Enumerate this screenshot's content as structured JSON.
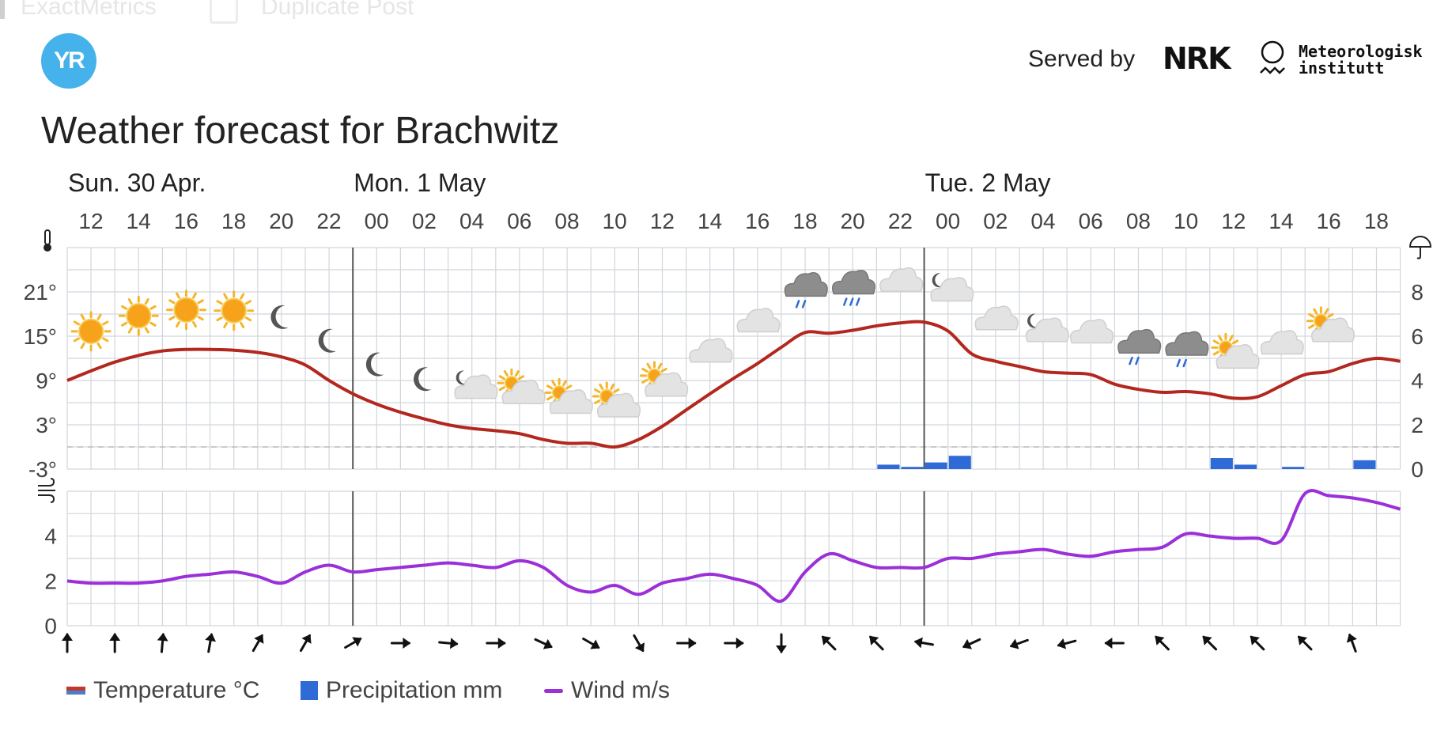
{
  "ghost_toolbar": {
    "item1": "ExactMetrics",
    "item2": "Duplicate Post"
  },
  "header": {
    "logo_text": "YR",
    "served_by": "Served by",
    "nrk_logo": "NRK",
    "met_line1": "Meteorologisk",
    "met_line2": "institutt"
  },
  "title": "Weather forecast for Brachwitz",
  "legend": {
    "temperature": "Temperature °C",
    "precipitation": "Precipitation mm",
    "wind": "Wind m/s"
  },
  "colors": {
    "temperature": "#b3281e",
    "precipitation": "#2f6bd6",
    "wind": "#9b30d9",
    "grid": "#d2d6dc",
    "day_divider": "#555555"
  },
  "chart_data": {
    "type": "line",
    "days": [
      {
        "label": "Sun. 30 Apr.",
        "start_hour_index": 0
      },
      {
        "label": "Mon. 1 May",
        "start_hour_index": 12
      },
      {
        "label": "Tue. 2 May",
        "start_hour_index": 36
      }
    ],
    "x_hours": [
      "12",
      "13",
      "14",
      "15",
      "16",
      "17",
      "18",
      "19",
      "20",
      "21",
      "22",
      "23",
      "00",
      "01",
      "02",
      "03",
      "04",
      "05",
      "06",
      "07",
      "08",
      "09",
      "10",
      "11",
      "12",
      "13",
      "14",
      "15",
      "16",
      "17",
      "18",
      "19",
      "20",
      "21",
      "22",
      "23",
      "00",
      "01",
      "02",
      "03",
      "04",
      "05",
      "06",
      "07",
      "08",
      "09",
      "10",
      "11",
      "12",
      "13",
      "14",
      "15",
      "16",
      "17",
      "18",
      "19",
      "20"
    ],
    "x_tick_labels": [
      "12",
      "14",
      "16",
      "18",
      "20",
      "22",
      "00",
      "02",
      "04",
      "06",
      "08",
      "10",
      "12",
      "14",
      "16",
      "18",
      "20",
      "22",
      "00",
      "02",
      "04",
      "06",
      "08",
      "10",
      "12",
      "14",
      "16",
      "18"
    ],
    "temperature_axis": {
      "ticks": [
        "-3°",
        "3°",
        "9°",
        "15°",
        "21°"
      ],
      "range": [
        -3,
        27
      ]
    },
    "precipitation_axis": {
      "ticks": [
        "0",
        "2",
        "4",
        "6",
        "8"
      ],
      "range": [
        0,
        10
      ]
    },
    "wind_axis": {
      "ticks": [
        "0",
        "2",
        "4"
      ],
      "range": [
        0,
        6
      ]
    },
    "series": [
      {
        "name": "Temperature °C",
        "unit": "°C",
        "values": [
          9.0,
          10.3,
          11.5,
          12.4,
          13.0,
          13.2,
          13.2,
          13.1,
          12.8,
          12.2,
          11.1,
          9.0,
          7.2,
          5.8,
          4.7,
          3.8,
          3.0,
          2.5,
          2.2,
          1.8,
          1.0,
          0.5,
          0.5,
          0.0,
          1.0,
          2.8,
          5.0,
          7.2,
          9.3,
          11.3,
          13.5,
          15.5,
          15.4,
          15.8,
          16.4,
          16.8,
          16.9,
          15.7,
          12.6,
          11.6,
          10.9,
          10.2,
          10.0,
          9.8,
          8.5,
          7.8,
          7.4,
          7.5,
          7.2,
          6.6,
          6.8,
          8.3,
          9.8,
          10.2,
          11.3,
          12.0,
          11.6
        ]
      },
      {
        "name": "Precipitation mm",
        "unit": "mm",
        "values": [
          0,
          0,
          0,
          0,
          0,
          0,
          0,
          0,
          0,
          0,
          0,
          0,
          0,
          0,
          0,
          0,
          0,
          0,
          0,
          0,
          0,
          0,
          0,
          0,
          0,
          0,
          0,
          0,
          0,
          0,
          0,
          0,
          0,
          0,
          0.2,
          0.1,
          0.3,
          0.6,
          0,
          0,
          0,
          0,
          0,
          0,
          0,
          0,
          0,
          0,
          0.5,
          0.2,
          0,
          0.1,
          0,
          0,
          0.4,
          0,
          0
        ]
      },
      {
        "name": "Wind m/s",
        "unit": "m/s",
        "values": [
          2.0,
          1.9,
          1.9,
          1.9,
          2.0,
          2.2,
          2.3,
          2.4,
          2.2,
          1.9,
          2.4,
          2.7,
          2.4,
          2.5,
          2.6,
          2.7,
          2.8,
          2.7,
          2.6,
          2.9,
          2.6,
          1.8,
          1.5,
          1.8,
          1.4,
          1.9,
          2.1,
          2.3,
          2.1,
          1.8,
          1.1,
          2.4,
          3.2,
          2.9,
          2.6,
          2.6,
          2.6,
          3.0,
          3.0,
          3.2,
          3.3,
          3.4,
          3.2,
          3.1,
          3.3,
          3.4,
          3.5,
          4.1,
          4.0,
          3.9,
          3.9,
          3.8,
          5.9,
          5.8,
          5.7,
          5.5,
          5.2
        ]
      }
    ],
    "weather_symbols": [
      {
        "hour_index": 1,
        "symbol": "sun"
      },
      {
        "hour_index": 3,
        "symbol": "sun"
      },
      {
        "hour_index": 5,
        "symbol": "sun"
      },
      {
        "hour_index": 7,
        "symbol": "sun"
      },
      {
        "hour_index": 9,
        "symbol": "moon"
      },
      {
        "hour_index": 11,
        "symbol": "moon"
      },
      {
        "hour_index": 13,
        "symbol": "moon"
      },
      {
        "hour_index": 15,
        "symbol": "moon"
      },
      {
        "hour_index": 17,
        "symbol": "partly-cloudy-night"
      },
      {
        "hour_index": 19,
        "symbol": "partly-cloudy-day"
      },
      {
        "hour_index": 21,
        "symbol": "partly-cloudy-day"
      },
      {
        "hour_index": 23,
        "symbol": "partly-cloudy-day"
      },
      {
        "hour_index": 25,
        "symbol": "partly-cloudy-day"
      },
      {
        "hour_index": 27,
        "symbol": "cloudy"
      },
      {
        "hour_index": 29,
        "symbol": "cloudy"
      },
      {
        "hour_index": 31,
        "symbol": "light-rain"
      },
      {
        "hour_index": 33,
        "symbol": "rain"
      },
      {
        "hour_index": 35,
        "symbol": "cloudy"
      },
      {
        "hour_index": 37,
        "symbol": "partly-cloudy-night"
      },
      {
        "hour_index": 39,
        "symbol": "cloudy"
      },
      {
        "hour_index": 41,
        "symbol": "partly-cloudy-night"
      },
      {
        "hour_index": 43,
        "symbol": "cloudy"
      },
      {
        "hour_index": 45,
        "symbol": "light-rain"
      },
      {
        "hour_index": 47,
        "symbol": "light-rain"
      },
      {
        "hour_index": 49,
        "symbol": "partly-cloudy-day"
      },
      {
        "hour_index": 51,
        "symbol": "cloudy"
      },
      {
        "hour_index": 53,
        "symbol": "partly-cloudy-day"
      }
    ],
    "wind_direction_arrows_deg": [
      180,
      180,
      185,
      190,
      210,
      210,
      240,
      270,
      275,
      270,
      295,
      300,
      330,
      270,
      270,
      0,
      135,
      135,
      100,
      65,
      70,
      75,
      90,
      135,
      135,
      135,
      135,
      160
    ],
    "grid": true,
    "legend_position": "bottom-left"
  }
}
